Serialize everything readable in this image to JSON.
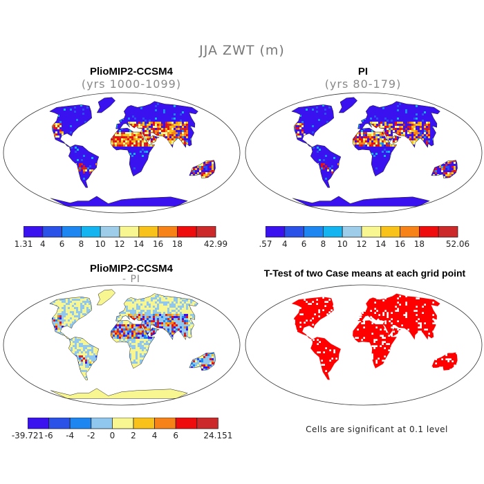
{
  "title": "JJA ZWT (m)",
  "panels": [
    {
      "id": "plio",
      "title": "PlioMIP2-CCSM4",
      "subtitle": "(yrs 1000-1099)",
      "colorbar": {
        "colors": [
          "#3a12f0",
          "#2a52e8",
          "#1e86f0",
          "#14b4f0",
          "#9ecdea",
          "#f8f690",
          "#f8c21a",
          "#f68218",
          "#ee0c0c",
          "#cc2a2a"
        ],
        "tick_labels": [
          "1.31",
          "4",
          "6",
          "8",
          "10",
          "12",
          "14",
          "16",
          "18",
          "42.99"
        ]
      }
    },
    {
      "id": "pi",
      "title": "PI",
      "subtitle": "(yrs 80-179)",
      "colorbar": {
        "colors": [
          "#3a12f0",
          "#2a52e8",
          "#1e86f0",
          "#14b4f0",
          "#9ecdea",
          "#f8f690",
          "#f8c21a",
          "#f68218",
          "#ee0c0c",
          "#cc2a2a"
        ],
        "tick_labels": [
          ".57",
          "4",
          "6",
          "8",
          "10",
          "12",
          "14",
          "16",
          "18",
          "52.06"
        ]
      }
    },
    {
      "id": "diff",
      "title": "PlioMIP2-CCSM4",
      "subtitle": "- PI",
      "colorbar": {
        "colors": [
          "#3a12f0",
          "#2a52e8",
          "#1e86f0",
          "#8fc7ee",
          "#f8f690",
          "#f8c21a",
          "#f68218",
          "#ee0c0c",
          "#cc2a2a"
        ],
        "tick_labels": [
          "-39.721",
          "-6",
          "-4",
          "-2",
          "0",
          "2",
          "4",
          "6",
          "24.151"
        ]
      }
    },
    {
      "id": "ttest",
      "title": "T-Test of two Case means at each grid point",
      "subtitle": "",
      "note": "Cells are significant at 0.1 level",
      "sig_color": "#ff0000"
    }
  ]
}
